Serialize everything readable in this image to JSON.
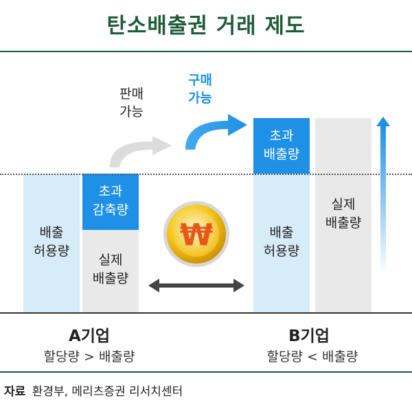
{
  "title": "탄소배출권 거래 제도",
  "colors": {
    "title_green": "#1f5c3a",
    "light_blue": "#d6ecf9",
    "blue": "#1e90e6",
    "gray": "#e9e9e9",
    "arrow_gray": "#dcdcdc",
    "coin_gold": "#f2b705",
    "won_red": "#e8571a"
  },
  "labels": {
    "sell": [
      "판매",
      "가능"
    ],
    "buy": [
      "구매",
      "가능"
    ],
    "a_allowance": [
      "배출",
      "허용량"
    ],
    "a_excess_reduction": [
      "초과",
      "감축량"
    ],
    "a_actual": [
      "실제",
      "배출량"
    ],
    "b_excess_emission": [
      "초과",
      "배출량"
    ],
    "b_allowance": [
      "배출",
      "허용량"
    ],
    "b_actual": [
      "실제",
      "배출량"
    ]
  },
  "companies": {
    "a_name": "A기업",
    "a_compare": "할당량 > 배출량",
    "b_name": "B기업",
    "b_compare": "할당량 < 배출량"
  },
  "coin_symbol": "₩",
  "source": {
    "label": "자료",
    "text": "환경부, 메리츠증권 리서치센터"
  }
}
